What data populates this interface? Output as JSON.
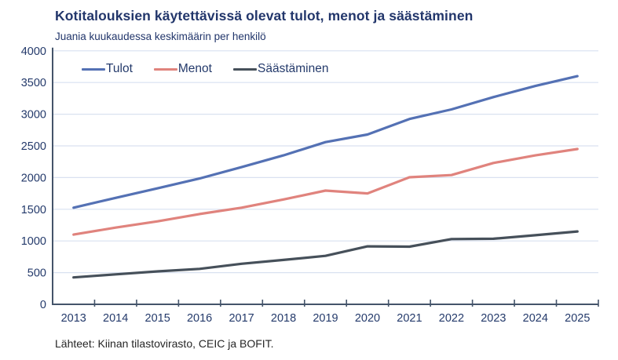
{
  "header": {
    "title": "Kotitalouksien käytettävissä olevat tulot, menot ja säästäminen",
    "subtitle": "Juania kuukaudessa keskimäärin per henkilö"
  },
  "footer": {
    "source": "Lähteet: Kiinan tilastovirasto, CEIC ja BOFIT."
  },
  "colors": {
    "title_text": "#22366b",
    "axis_text": "#243a6b",
    "axis_line": "#44546a",
    "gridline": "#d9e1f0",
    "background": "#ffffff"
  },
  "chart_data": {
    "type": "line",
    "title": "Kotitalouksien käytettävissä olevat tulot, menot ja säästäminen",
    "subtitle": "Juania kuukaudessa keskimäärin per henkilö",
    "xlabel": "",
    "ylabel": "",
    "ylim": [
      0,
      4000
    ],
    "ytick_step": 500,
    "grid": true,
    "legend_position": "top-left-inside",
    "categories": [
      2013,
      2014,
      2015,
      2016,
      2017,
      2018,
      2019,
      2020,
      2021,
      2022,
      2023,
      2024,
      2025
    ],
    "series": [
      {
        "name": "Tulot",
        "color": "#5471b4",
        "values": [
          1525,
          1680,
          1830,
          1985,
          2165,
          2350,
          2560,
          2680,
          2925,
          3075,
          3270,
          3445,
          3600
        ]
      },
      {
        "name": "Menot",
        "color": "#e0837d",
        "values": [
          1100,
          1210,
          1310,
          1425,
          1525,
          1655,
          1795,
          1750,
          2005,
          2040,
          2230,
          2350,
          2450
        ]
      },
      {
        "name": "Säästäminen",
        "color": "#46505a",
        "values": [
          425,
          473,
          520,
          560,
          640,
          700,
          765,
          915,
          910,
          1030,
          1035,
          1090,
          1150
        ]
      }
    ]
  }
}
